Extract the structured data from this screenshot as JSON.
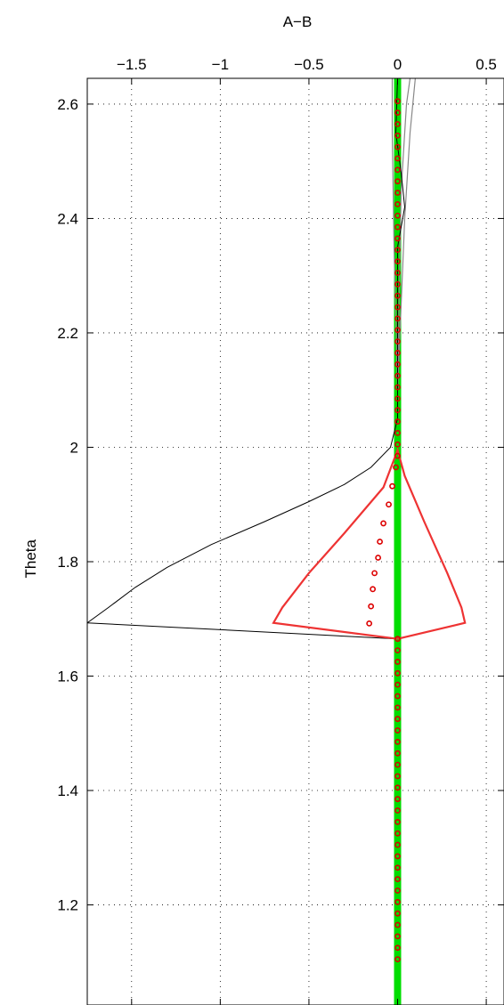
{
  "chart_data": {
    "type": "line",
    "title": "",
    "xlabel": "A−B",
    "ylabel": "Theta",
    "xlim": [
      -1.75,
      0.6
    ],
    "ylim": [
      1.025,
      2.645
    ],
    "x_axis_position": "top",
    "grid": true,
    "grid_style": "dotted",
    "x_ticks": [
      -1.5,
      -1,
      -0.5,
      0,
      0.5
    ],
    "x_tick_labels": [
      "−1.5",
      "−1",
      "−0.5",
      "0",
      "0.5"
    ],
    "y_ticks": [
      1.2,
      1.4,
      1.6,
      1.8,
      2.0,
      2.2,
      2.4,
      2.6
    ],
    "y_tick_labels": [
      "1.2",
      "1.4",
      "1.6",
      "1.8",
      "2",
      "2.2",
      "2.4",
      "2.6"
    ],
    "colors": {
      "green": "#00dd00",
      "red": "#ee3333",
      "black": "#000000",
      "gray": "#888888"
    },
    "series": [
      {
        "style": "green-thick-line",
        "points": [
          [
            0,
            1.025
          ],
          [
            0,
            2.645
          ]
        ]
      },
      {
        "style": "gray-lines-top",
        "lines": [
          [
            [
              0.0,
              2.1
            ],
            [
              -0.02,
              2.35
            ],
            [
              -0.03,
              2.55
            ],
            [
              -0.03,
              2.645
            ]
          ],
          [
            [
              0.0,
              2.1
            ],
            [
              0.04,
              2.4
            ],
            [
              0.07,
              2.55
            ],
            [
              0.1,
              2.645
            ]
          ],
          [
            [
              0.0,
              2.1
            ],
            [
              0.02,
              2.45
            ],
            [
              0.05,
              2.6
            ],
            [
              0.07,
              2.645
            ]
          ]
        ]
      },
      {
        "style": "black-line",
        "points": [
          [
            0.0,
            2.645
          ],
          [
            -0.01,
            2.55
          ],
          [
            0.02,
            2.48
          ],
          [
            0.04,
            2.42
          ],
          [
            0.0,
            2.35
          ],
          [
            0.0,
            2.05
          ],
          [
            -0.04,
            2.0
          ],
          [
            -0.15,
            1.965
          ],
          [
            -0.3,
            1.935
          ],
          [
            -0.5,
            1.905
          ],
          [
            -0.75,
            1.87
          ],
          [
            -1.05,
            1.83
          ],
          [
            -1.3,
            1.79
          ],
          [
            -1.48,
            1.755
          ],
          [
            -1.63,
            1.72
          ],
          [
            -1.75,
            1.693
          ],
          [
            0.0,
            1.665
          ]
        ]
      },
      {
        "style": "red-line",
        "points": [
          [
            0.0,
            1.665
          ],
          [
            -0.7,
            1.693
          ],
          [
            -0.65,
            1.72
          ],
          [
            -0.5,
            1.78
          ],
          [
            -0.3,
            1.85
          ],
          [
            -0.08,
            1.93
          ],
          [
            0.0,
            1.995
          ],
          [
            0.04,
            1.95
          ],
          [
            0.15,
            1.87
          ],
          [
            0.28,
            1.78
          ],
          [
            0.36,
            1.72
          ],
          [
            0.38,
            1.693
          ],
          [
            0.0,
            1.665
          ]
        ]
      },
      {
        "style": "red-circles",
        "points": [
          [
            0.0,
            2.605
          ],
          [
            0.0,
            2.585
          ],
          [
            0.0,
            2.565
          ],
          [
            0.0,
            2.545
          ],
          [
            0.0,
            2.525
          ],
          [
            0.0,
            2.505
          ],
          [
            0.0,
            2.485
          ],
          [
            0.0,
            2.465
          ],
          [
            0.0,
            2.445
          ],
          [
            0.0,
            2.425
          ],
          [
            0.0,
            2.405
          ],
          [
            0.0,
            2.385
          ],
          [
            0.0,
            2.365
          ],
          [
            0.0,
            2.345
          ],
          [
            0.0,
            2.325
          ],
          [
            0.0,
            2.305
          ],
          [
            0.0,
            2.285
          ],
          [
            0.0,
            2.265
          ],
          [
            0.0,
            2.245
          ],
          [
            0.0,
            2.225
          ],
          [
            0.0,
            2.205
          ],
          [
            0.0,
            2.185
          ],
          [
            0.0,
            2.165
          ],
          [
            0.0,
            2.145
          ],
          [
            0.0,
            2.125
          ],
          [
            0.0,
            2.105
          ],
          [
            0.0,
            2.085
          ],
          [
            0.0,
            2.065
          ],
          [
            0.0,
            2.045
          ],
          [
            0.0,
            2.025
          ],
          [
            0.0,
            2.005
          ],
          [
            0.0,
            1.985
          ],
          [
            -0.01,
            1.965
          ],
          [
            -0.03,
            1.932
          ],
          [
            -0.05,
            1.9
          ],
          [
            -0.08,
            1.867
          ],
          [
            -0.1,
            1.835
          ],
          [
            -0.11,
            1.807
          ],
          [
            -0.13,
            1.78
          ],
          [
            -0.14,
            1.752
          ],
          [
            -0.15,
            1.722
          ],
          [
            -0.16,
            1.692
          ],
          [
            0.0,
            1.665
          ],
          [
            0.0,
            1.645
          ],
          [
            0.0,
            1.625
          ],
          [
            0.0,
            1.605
          ],
          [
            0.0,
            1.585
          ],
          [
            0.0,
            1.565
          ],
          [
            0.0,
            1.545
          ],
          [
            0.0,
            1.525
          ],
          [
            0.0,
            1.505
          ],
          [
            0.0,
            1.485
          ],
          [
            0.0,
            1.465
          ],
          [
            0.0,
            1.445
          ],
          [
            0.0,
            1.425
          ],
          [
            0.0,
            1.405
          ],
          [
            0.0,
            1.385
          ],
          [
            0.0,
            1.365
          ],
          [
            0.0,
            1.345
          ],
          [
            0.0,
            1.325
          ],
          [
            0.0,
            1.305
          ],
          [
            0.0,
            1.285
          ],
          [
            0.0,
            1.265
          ],
          [
            0.0,
            1.245
          ],
          [
            0.0,
            1.225
          ],
          [
            0.0,
            1.205
          ],
          [
            0.0,
            1.185
          ],
          [
            0.0,
            1.165
          ],
          [
            0.0,
            1.145
          ],
          [
            0.0,
            1.125
          ],
          [
            0.0,
            1.105
          ]
        ]
      }
    ]
  }
}
